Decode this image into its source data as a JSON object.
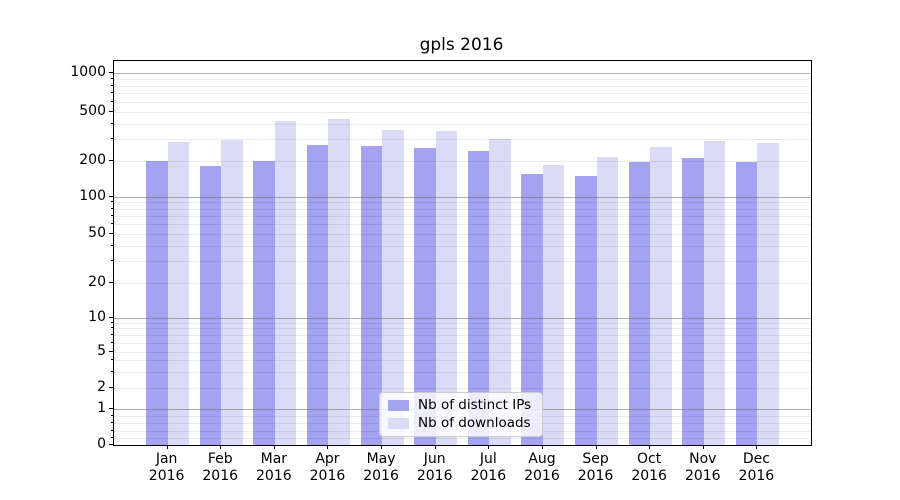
{
  "chart_data": {
    "type": "bar",
    "title": "gpls 2016",
    "categories": [
      "Jan 2016",
      "Feb 2016",
      "Mar 2016",
      "Apr 2016",
      "May 2016",
      "Jun 2016",
      "Jul 2016",
      "Aug 2016",
      "Sep 2016",
      "Oct 2016",
      "Nov 2016",
      "Dec 2016"
    ],
    "months": [
      "Jan",
      "Feb",
      "Mar",
      "Apr",
      "May",
      "Jun",
      "Jul",
      "Aug",
      "Sep",
      "Oct",
      "Nov",
      "Dec"
    ],
    "year_line": "2016",
    "series": [
      {
        "name": "Nb of distinct IPs",
        "color": "#a3a3f1",
        "values": [
          200,
          180,
          200,
          270,
          265,
          255,
          240,
          155,
          150,
          195,
          210,
          195
        ]
      },
      {
        "name": "Nb of downloads",
        "color": "#dbdbf8",
        "values": [
          285,
          295,
          425,
          440,
          360,
          350,
          300,
          185,
          215,
          260,
          290,
          280
        ]
      }
    ],
    "yticks": [
      0,
      1,
      2,
      5,
      10,
      20,
      50,
      100,
      200,
      500,
      1000
    ],
    "yscale": "symlog (log above 1, linear 0-1)",
    "ylim": [
      0,
      1300
    ],
    "xlabel": "",
    "ylabel": "",
    "legend_position": "lower center",
    "grid": "both: darker major lines at powers of 10, faint minor lines elsewhere",
    "colors": {
      "major_grid": "#b3b3b3",
      "minor_grid": "#ebebeb",
      "spine": "#000000",
      "text": "#000000",
      "background": "#ffffff"
    }
  }
}
